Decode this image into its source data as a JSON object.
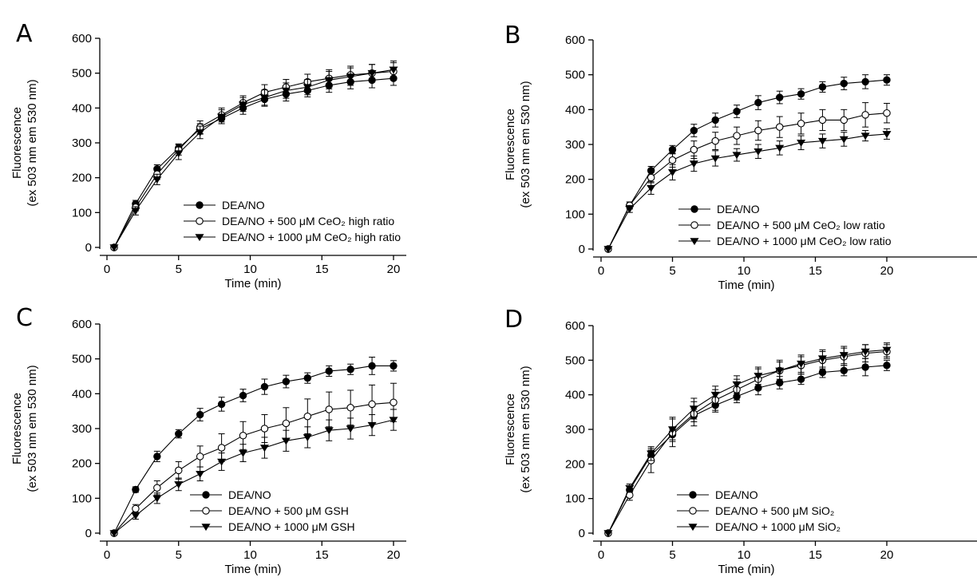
{
  "chart_data": [
    {
      "type": "line",
      "panel": "A",
      "xlabel": "Time (min)",
      "ylabel_line1": "Fluorescence",
      "ylabel_line2": "(ex 503 nm em 530 nm)",
      "xlim": [
        0,
        20
      ],
      "ylim": [
        0,
        600
      ],
      "x_ticks": [
        0,
        5,
        10,
        15,
        20
      ],
      "y_ticks": [
        0,
        100,
        200,
        300,
        400,
        500,
        600
      ],
      "x": [
        0.5,
        2,
        3.5,
        5,
        6.5,
        8,
        9.5,
        11,
        12.5,
        14,
        15.5,
        17,
        18.5,
        20
      ],
      "series": [
        {
          "name": "DEA/NO",
          "marker": "filled-circle",
          "values": [
            0,
            125,
            225,
            285,
            340,
            370,
            400,
            425,
            440,
            450,
            465,
            475,
            480,
            485
          ],
          "errors": [
            0,
            10,
            12,
            12,
            15,
            15,
            18,
            20,
            20,
            18,
            20,
            20,
            22,
            20
          ]
        },
        {
          "name": "DEA/NO + 500 μM CeO₂ high ratio",
          "marker": "open-circle",
          "values": [
            0,
            115,
            210,
            280,
            345,
            380,
            415,
            445,
            460,
            475,
            485,
            495,
            500,
            505
          ],
          "errors": [
            0,
            10,
            15,
            15,
            18,
            20,
            20,
            22,
            22,
            22,
            25,
            25,
            25,
            25
          ]
        },
        {
          "name": "DEA/NO + 1000 μM CeO₂ high ratio",
          "marker": "filled-triangle-down",
          "values": [
            0,
            105,
            195,
            270,
            330,
            375,
            410,
            430,
            450,
            460,
            480,
            490,
            500,
            510
          ],
          "errors": [
            0,
            12,
            15,
            18,
            18,
            20,
            20,
            22,
            22,
            22,
            25,
            25,
            25,
            25
          ]
        }
      ]
    },
    {
      "type": "line",
      "panel": "B",
      "xlabel": "Time (min)",
      "ylabel_line1": "Fluorescence",
      "ylabel_line2": "(ex 503 nm em 530 nm)",
      "xlim": [
        0,
        20
      ],
      "ylim": [
        0,
        600
      ],
      "x_ticks": [
        0,
        5,
        10,
        15,
        20
      ],
      "y_ticks": [
        0,
        100,
        200,
        300,
        400,
        500,
        600
      ],
      "x": [
        0.5,
        2,
        3.5,
        5,
        6.5,
        8,
        9.5,
        11,
        12.5,
        14,
        15.5,
        17,
        18.5,
        20
      ],
      "series": [
        {
          "name": "DEA/NO",
          "marker": "filled-circle",
          "values": [
            0,
            125,
            225,
            285,
            340,
            370,
            395,
            420,
            435,
            445,
            465,
            475,
            480,
            485
          ],
          "errors": [
            0,
            10,
            12,
            12,
            18,
            20,
            18,
            20,
            18,
            15,
            15,
            18,
            20,
            15
          ]
        },
        {
          "name": "DEA/NO + 500 μM CeO₂ low ratio",
          "marker": "open-circle",
          "values": [
            0,
            125,
            205,
            255,
            285,
            310,
            325,
            340,
            350,
            360,
            370,
            370,
            385,
            390
          ],
          "errors": [
            0,
            10,
            15,
            20,
            25,
            25,
            25,
            28,
            30,
            30,
            30,
            30,
            35,
            28
          ]
        },
        {
          "name": "DEA/NO + 1000 μM CeO₂ low ratio",
          "marker": "filled-triangle-down",
          "values": [
            0,
            115,
            175,
            220,
            245,
            260,
            270,
            280,
            290,
            305,
            310,
            315,
            325,
            330
          ],
          "errors": [
            0,
            10,
            18,
            22,
            22,
            22,
            18,
            20,
            20,
            20,
            20,
            20,
            15,
            15
          ]
        }
      ]
    },
    {
      "type": "line",
      "panel": "C",
      "xlabel": "Time (min)",
      "ylabel_line1": "Fluorescence",
      "ylabel_line2": "(ex 503 nm em 530 nm)",
      "xlim": [
        0,
        20
      ],
      "ylim": [
        0,
        600
      ],
      "x_ticks": [
        0,
        5,
        10,
        15,
        20
      ],
      "y_ticks": [
        0,
        100,
        200,
        300,
        400,
        500,
        600
      ],
      "x": [
        0.5,
        2,
        3.5,
        5,
        6.5,
        8,
        9.5,
        11,
        12.5,
        14,
        15.5,
        17,
        18.5,
        20
      ],
      "series": [
        {
          "name": "DEA/NO",
          "marker": "filled-circle",
          "values": [
            0,
            125,
            220,
            285,
            340,
            370,
            395,
            420,
            435,
            445,
            465,
            470,
            480,
            480
          ],
          "errors": [
            0,
            8,
            15,
            12,
            18,
            20,
            18,
            22,
            18,
            15,
            15,
            15,
            25,
            15
          ]
        },
        {
          "name": "DEA/NO + 500 μM GSH",
          "marker": "open-circle",
          "values": [
            0,
            70,
            130,
            180,
            220,
            245,
            280,
            300,
            315,
            335,
            355,
            360,
            370,
            375
          ],
          "errors": [
            0,
            12,
            20,
            25,
            30,
            40,
            40,
            40,
            45,
            50,
            50,
            50,
            55,
            55
          ]
        },
        {
          "name": "DEA/NO + 1000 μM GSH",
          "marker": "filled-triangle-down",
          "values": [
            0,
            50,
            100,
            140,
            170,
            205,
            230,
            245,
            265,
            275,
            295,
            300,
            310,
            325
          ],
          "errors": [
            0,
            10,
            15,
            18,
            20,
            25,
            25,
            30,
            30,
            30,
            30,
            30,
            30,
            30
          ]
        }
      ]
    },
    {
      "type": "line",
      "panel": "D",
      "xlabel": "Time (min)",
      "ylabel_line1": "Fluorescence",
      "ylabel_line2": "(ex 503 nm em 530 nm)",
      "xlim": [
        0,
        20
      ],
      "ylim": [
        0,
        600
      ],
      "x_ticks": [
        0,
        5,
        10,
        15,
        20
      ],
      "y_ticks": [
        0,
        100,
        200,
        300,
        400,
        500,
        600
      ],
      "x": [
        0.5,
        2,
        3.5,
        5,
        6.5,
        8,
        9.5,
        11,
        12.5,
        14,
        15.5,
        17,
        18.5,
        20
      ],
      "series": [
        {
          "name": "DEA/NO",
          "marker": "filled-circle",
          "values": [
            0,
            125,
            225,
            285,
            340,
            370,
            395,
            420,
            435,
            445,
            465,
            470,
            480,
            485
          ],
          "errors": [
            0,
            10,
            15,
            15,
            18,
            20,
            18,
            20,
            18,
            15,
            15,
            15,
            25,
            15
          ]
        },
        {
          "name": "DEA/NO + 500 μM SiO₂",
          "marker": "open-circle",
          "values": [
            0,
            110,
            210,
            290,
            345,
            385,
            415,
            445,
            470,
            485,
            500,
            510,
            520,
            525
          ],
          "errors": [
            0,
            15,
            35,
            40,
            35,
            30,
            30,
            30,
            30,
            25,
            25,
            25,
            25,
            20
          ]
        },
        {
          "name": "DEA/NO + 1000 μM SiO₂",
          "marker": "filled-triangle-down",
          "values": [
            0,
            130,
            230,
            300,
            360,
            400,
            430,
            455,
            470,
            490,
            505,
            515,
            525,
            530
          ],
          "errors": [
            0,
            12,
            20,
            35,
            30,
            25,
            25,
            25,
            25,
            25,
            25,
            25,
            20,
            20
          ]
        }
      ]
    }
  ]
}
